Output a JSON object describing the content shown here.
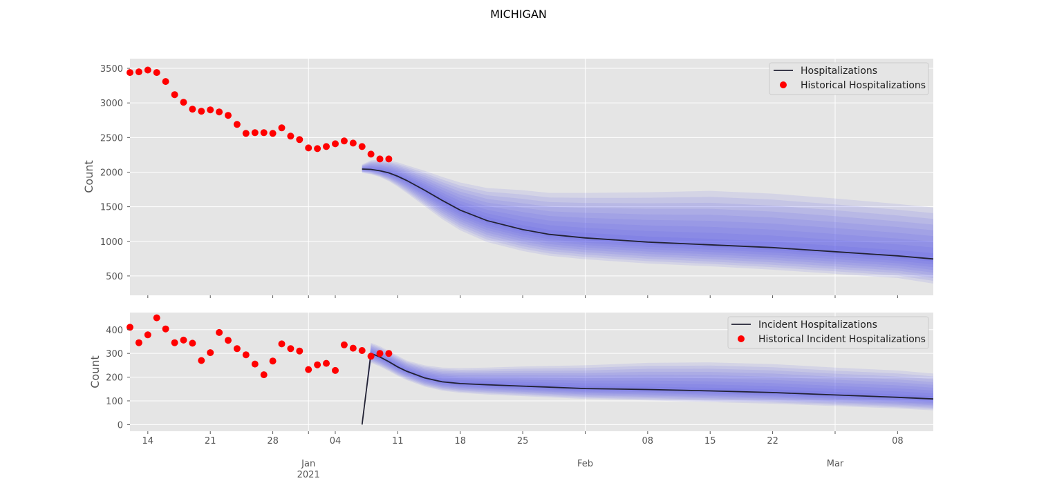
{
  "figure": {
    "title": "MICHIGAN"
  },
  "x_ticks": [
    {
      "date": "2020-12-14",
      "label": "14"
    },
    {
      "date": "2020-12-21",
      "label": "21"
    },
    {
      "date": "2020-12-28",
      "label": "28"
    },
    {
      "date": "2021-01-04",
      "label": "04"
    },
    {
      "date": "2021-01-11",
      "label": "11"
    },
    {
      "date": "2021-01-18",
      "label": "18"
    },
    {
      "date": "2021-01-25",
      "label": "25"
    },
    {
      "date": "2021-02-08",
      "label": "08"
    },
    {
      "date": "2021-02-15",
      "label": "15"
    },
    {
      "date": "2021-02-22",
      "label": "22"
    },
    {
      "date": "2021-03-08",
      "label": "08"
    }
  ],
  "x_major_ticks": [
    {
      "date": "2021-01-01",
      "label": "Jan",
      "sublabel": "2021"
    },
    {
      "date": "2021-02-01",
      "label": "Feb",
      "sublabel": ""
    },
    {
      "date": "2021-03-01",
      "label": "Mar",
      "sublabel": ""
    }
  ],
  "chart_data": [
    {
      "type": "line",
      "title": "MICHIGAN",
      "ylabel": "Count",
      "xlim": [
        "2020-12-12",
        "2021-03-12"
      ],
      "ylim": [
        220,
        3640
      ],
      "yticks": [
        500,
        1000,
        1500,
        2000,
        2500,
        3000,
        3500
      ],
      "grid": true,
      "legend_position": "top-right",
      "legend": [
        "Hospitalizations",
        "Historical Hospitalizations"
      ],
      "historical": {
        "name": "Historical Hospitalizations",
        "color": "#ff0000",
        "dates": [
          "2020-12-12",
          "2020-12-13",
          "2020-12-14",
          "2020-12-15",
          "2020-12-16",
          "2020-12-17",
          "2020-12-18",
          "2020-12-19",
          "2020-12-20",
          "2020-12-21",
          "2020-12-22",
          "2020-12-23",
          "2020-12-24",
          "2020-12-25",
          "2020-12-26",
          "2020-12-27",
          "2020-12-28",
          "2020-12-29",
          "2020-12-30",
          "2020-12-31",
          "2021-01-01",
          "2021-01-02",
          "2021-01-03",
          "2021-01-04",
          "2021-01-05",
          "2021-01-06",
          "2021-01-07",
          "2021-01-08",
          "2021-01-09",
          "2021-01-10"
        ],
        "values": [
          3440,
          3450,
          3475,
          3440,
          3310,
          3120,
          3010,
          2910,
          2880,
          2900,
          2870,
          2820,
          2690,
          2560,
          2570,
          2570,
          2560,
          2640,
          2520,
          2470,
          2350,
          2340,
          2370,
          2410,
          2450,
          2420,
          2370,
          2260,
          2190,
          2190
        ]
      },
      "forecast": {
        "name": "Hospitalizations",
        "color": "#222233",
        "band_color": "#5050ee",
        "dates": [
          "2021-01-07",
          "2021-01-08",
          "2021-01-09",
          "2021-01-10",
          "2021-01-11",
          "2021-01-12",
          "2021-01-14",
          "2021-01-16",
          "2021-01-18",
          "2021-01-21",
          "2021-01-25",
          "2021-01-28",
          "2021-02-01",
          "2021-02-08",
          "2021-02-15",
          "2021-02-22",
          "2021-03-01",
          "2021-03-08",
          "2021-03-12"
        ],
        "median": [
          2045,
          2040,
          2020,
          1990,
          1940,
          1880,
          1740,
          1590,
          1450,
          1300,
          1170,
          1100,
          1050,
          990,
          950,
          910,
          850,
          790,
          745
        ],
        "lower": [
          1990,
          1970,
          1930,
          1870,
          1790,
          1700,
          1510,
          1320,
          1160,
          990,
          860,
          790,
          740,
          680,
          640,
          590,
          530,
          470,
          390
        ],
        "upper": [
          2110,
          2170,
          2180,
          2170,
          2140,
          2100,
          2020,
          1930,
          1850,
          1770,
          1740,
          1700,
          1700,
          1710,
          1730,
          1690,
          1620,
          1540,
          1490
        ]
      }
    },
    {
      "type": "line",
      "ylabel": "Count",
      "xlim": [
        "2020-12-12",
        "2021-03-12"
      ],
      "ylim": [
        -28,
        472
      ],
      "yticks": [
        0,
        100,
        200,
        300,
        400
      ],
      "grid": true,
      "legend_position": "top-right",
      "legend": [
        "Incident Hospitalizations",
        "Historical Incident Hospitalizations"
      ],
      "historical": {
        "name": "Historical Incident Hospitalizations",
        "color": "#ff0000",
        "dates": [
          "2020-12-12",
          "2020-12-13",
          "2020-12-14",
          "2020-12-15",
          "2020-12-16",
          "2020-12-17",
          "2020-12-18",
          "2020-12-19",
          "2020-12-20",
          "2020-12-21",
          "2020-12-22",
          "2020-12-23",
          "2020-12-24",
          "2020-12-25",
          "2020-12-26",
          "2020-12-27",
          "2020-12-28",
          "2020-12-29",
          "2020-12-30",
          "2020-12-31",
          "2021-01-01",
          "2021-01-02",
          "2021-01-03",
          "2021-01-04",
          "2021-01-05",
          "2021-01-06",
          "2021-01-07",
          "2021-01-08",
          "2021-01-09",
          "2021-01-10"
        ],
        "values": [
          410,
          345,
          378,
          450,
          403,
          345,
          356,
          343,
          270,
          303,
          388,
          355,
          320,
          294,
          255,
          210,
          268,
          340,
          320,
          310,
          232,
          252,
          258,
          228,
          336,
          322,
          312,
          288,
          300,
          300
        ]
      },
      "forecast": {
        "name": "Incident Hospitalizations",
        "color": "#222233",
        "band_color": "#5050ee",
        "dates": [
          "2021-01-07",
          "2021-01-08",
          "2021-01-09",
          "2021-01-10",
          "2021-01-11",
          "2021-01-12",
          "2021-01-14",
          "2021-01-16",
          "2021-01-18",
          "2021-01-21",
          "2021-01-25",
          "2021-02-01",
          "2021-02-08",
          "2021-02-15",
          "2021-02-22",
          "2021-03-01",
          "2021-03-08",
          "2021-03-12"
        ],
        "median": [
          0,
          300,
          285,
          265,
          243,
          225,
          197,
          180,
          173,
          168,
          162,
          152,
          148,
          142,
          135,
          125,
          115,
          108
        ],
        "lower": [
          0,
          260,
          245,
          226,
          205,
          188,
          160,
          143,
          134,
          127,
          120,
          108,
          102,
          95,
          88,
          78,
          68,
          60
        ],
        "upper": [
          0,
          345,
          330,
          310,
          290,
          270,
          250,
          240,
          238,
          240,
          245,
          250,
          260,
          262,
          255,
          240,
          228,
          215
        ]
      }
    }
  ]
}
